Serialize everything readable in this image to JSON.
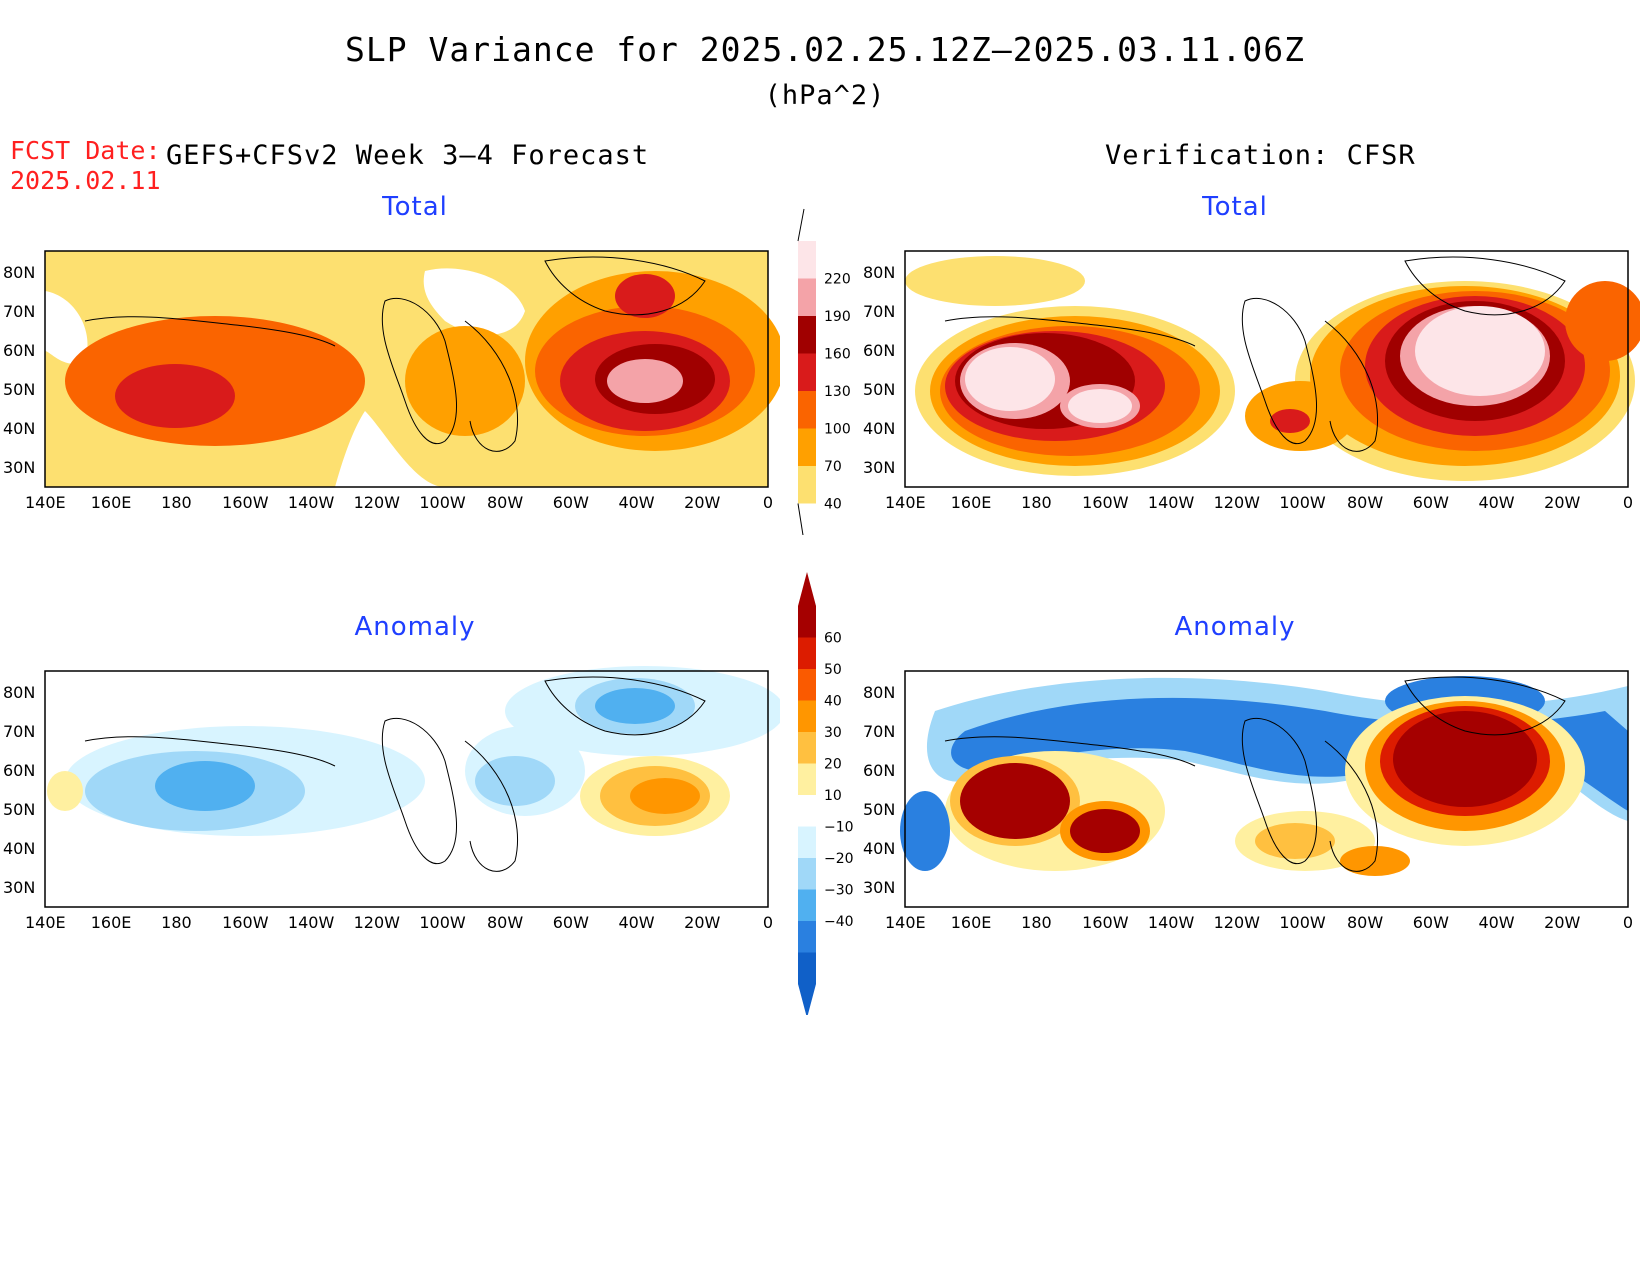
{
  "title": "SLP Variance for 2025.02.25.12Z–2025.03.11.06Z",
  "units": "(hPa^2)",
  "fcst_date": {
    "label": "FCST Date:",
    "value": "2025.02.11"
  },
  "left_header": "GEFS+CFSv2 Week 3–4 Forecast",
  "right_header": "Verification: CFSR",
  "panels": {
    "forecast_total": {
      "title": "Total"
    },
    "verification_total": {
      "title": "Total"
    },
    "forecast_anomaly": {
      "title": "Anomaly"
    },
    "verification_anomaly": {
      "title": "Anomaly"
    }
  },
  "axes": {
    "lat_labels": [
      "80N",
      "70N",
      "60N",
      "50N",
      "40N",
      "30N"
    ],
    "lon_labels": [
      "140E",
      "160E",
      "180",
      "160W",
      "140W",
      "120W",
      "100W",
      "80W",
      "60W",
      "40W",
      "20W",
      "0"
    ]
  },
  "total_colorbar": {
    "labels": [
      "220",
      "190",
      "160",
      "130",
      "100",
      "70",
      "40"
    ],
    "colors": [
      "#fde5e8",
      "#f4a3a8",
      "#a00000",
      "#d91b1b",
      "#fa6400",
      "#ffa000",
      "#fde070"
    ]
  },
  "anomaly_colorbar": {
    "labels": [
      "60",
      "50",
      "40",
      "30",
      "20",
      "10",
      "−10",
      "−20",
      "−30",
      "−40"
    ],
    "colors": [
      "#a50000",
      "#dc1c00",
      "#fa5a00",
      "#ff9600",
      "#ffc040",
      "#fff0a0",
      "#ffffff",
      "#d8f4ff",
      "#a0d8f8",
      "#50b0f0",
      "#2a80e0",
      "#1060c8"
    ]
  },
  "map_colors": {
    "t40": "#fde070",
    "t70": "#ffa000",
    "t100": "#fa6400",
    "t130": "#d91b1b",
    "t160": "#a00000",
    "t190": "#f4a3a8",
    "t220": "#fde5e8",
    "a_pos10": "#fff0a0",
    "a_pos20": "#ffc040",
    "a_pos30": "#ff9600",
    "a_pos40": "#fa5a00",
    "a_pos50": "#dc1c00",
    "a_pos60": "#a50000",
    "a_neg10": "#d8f4ff",
    "a_neg20": "#a0d8f8",
    "a_neg30": "#50b0f0",
    "a_neg40": "#2a80e0"
  }
}
